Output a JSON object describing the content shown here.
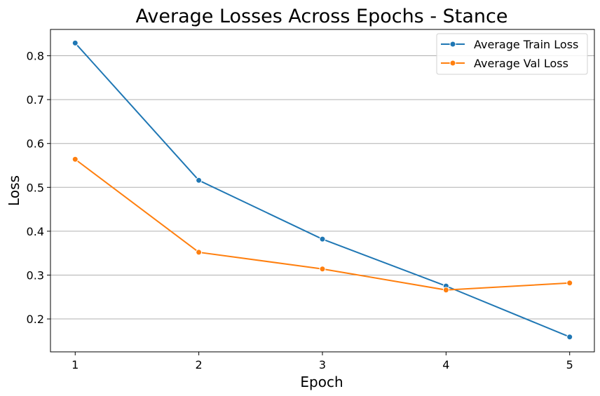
{
  "chart_data": {
    "type": "line",
    "title": "Average Losses Across Epochs - Stance",
    "xlabel": "Epoch",
    "ylabel": "Loss",
    "x": [
      1,
      2,
      3,
      4,
      5
    ],
    "xticks": [
      "1",
      "2",
      "3",
      "4",
      "5"
    ],
    "yticks": [
      "0.2",
      "0.3",
      "0.4",
      "0.5",
      "0.6",
      "0.7",
      "0.8"
    ],
    "ytick_values": [
      0.2,
      0.3,
      0.4,
      0.5,
      0.6,
      0.7,
      0.8
    ],
    "xlim": [
      0.8,
      5.2
    ],
    "ylim": [
      0.125,
      0.86
    ],
    "grid": "horizontal",
    "legend_position": "top-right",
    "series": [
      {
        "name": "Average Train Loss",
        "color": "#1f77b4",
        "values": [
          0.829,
          0.516,
          0.382,
          0.275,
          0.159
        ]
      },
      {
        "name": "Average Val Loss",
        "color": "#ff7f0e",
        "values": [
          0.564,
          0.352,
          0.314,
          0.266,
          0.282
        ]
      }
    ]
  }
}
